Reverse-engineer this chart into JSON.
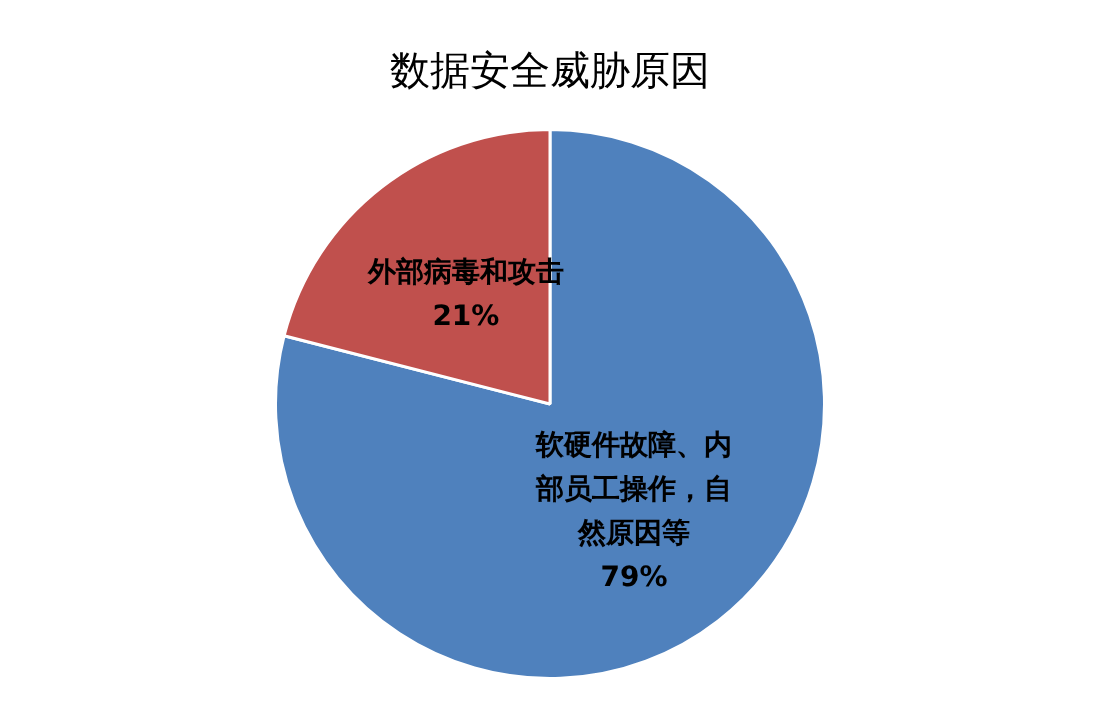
{
  "chart_data": {
    "type": "pie",
    "title": "数据安全威胁原因",
    "categories": [
      "软硬件故障、内部员工操作，自然原因等",
      "外部病毒和攻击"
    ],
    "values": [
      79,
      21
    ],
    "colors": [
      "#4f81bd",
      "#c0504d"
    ],
    "value_labels": [
      "79%",
      "21%"
    ],
    "legend": false
  }
}
